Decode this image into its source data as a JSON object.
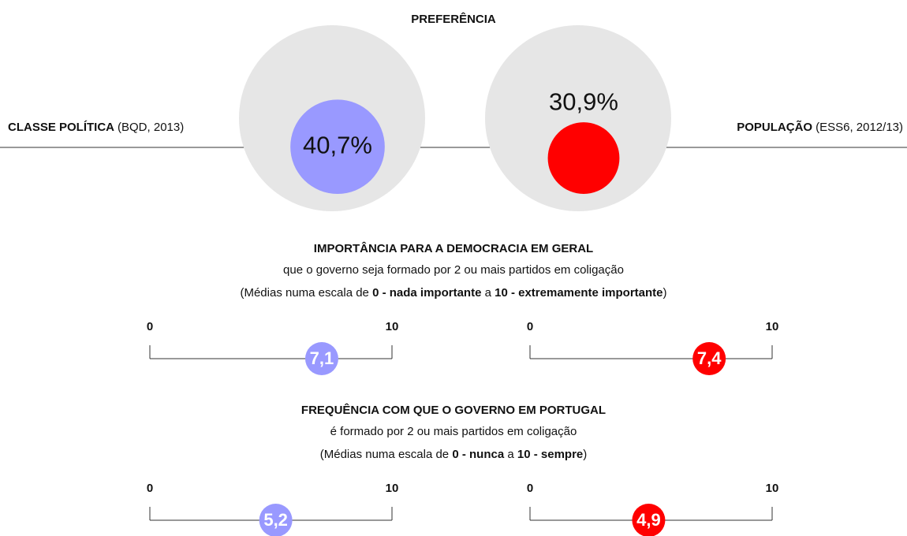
{
  "chart_data": [
    {
      "type": "bubble",
      "title": "PREFERÊNCIA",
      "ylim": [
        0,
        100
      ],
      "series": [
        {
          "name": "CLASSE POLÍTICA",
          "note": "(BQD, 2013)",
          "color": "#9999ff",
          "values": [
            40.7
          ],
          "value_labels": [
            "40,7%"
          ]
        },
        {
          "name": "POPULAÇÃO",
          "note": "(ESS6, 2012/13)",
          "color": "#ff0000",
          "values": [
            30.9
          ],
          "value_labels": [
            "30,9%"
          ]
        }
      ]
    },
    {
      "type": "scale",
      "title": "IMPORTÂNCIA PARA A DEMOCRACIA EM GERAL",
      "subtitle": "que o governo seja formado por 2 ou mais partidos em coligação",
      "note": [
        "(Médias numa escala de ",
        "0 - nada importante",
        " a ",
        "10 - extremamente importante",
        ")"
      ],
      "xlim": [
        0,
        10
      ],
      "xticks": [
        0,
        10
      ],
      "series": [
        {
          "color": "#9999ff",
          "values": [
            7.1
          ],
          "value_labels": [
            "7,1"
          ]
        },
        {
          "color": "#ff0000",
          "values": [
            7.4
          ],
          "value_labels": [
            "7,4"
          ]
        }
      ]
    },
    {
      "type": "scale",
      "title": "FREQUÊNCIA COM QUE O GOVERNO EM PORTUGAL",
      "subtitle": "é formado por 2 ou mais partidos em coligação",
      "note": [
        "(Médias numa escala de ",
        "0 - nunca",
        " a ",
        "10 - sempre",
        ")"
      ],
      "xlim": [
        0,
        10
      ],
      "xticks": [
        0,
        10
      ],
      "series": [
        {
          "color": "#9999ff",
          "values": [
            5.2
          ],
          "value_labels": [
            "5,2"
          ]
        },
        {
          "color": "#ff0000",
          "values": [
            4.9
          ],
          "value_labels": [
            "4,9"
          ]
        }
      ]
    }
  ]
}
